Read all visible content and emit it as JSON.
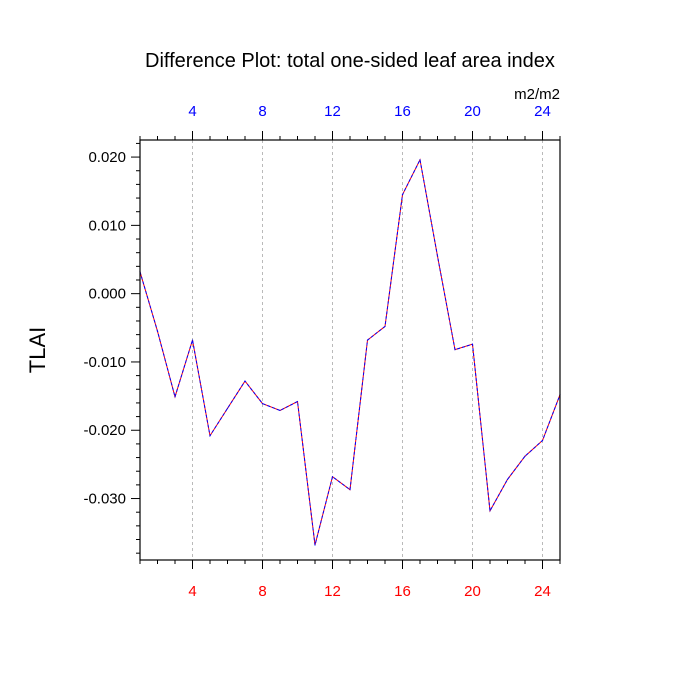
{
  "chart_data": {
    "type": "line",
    "title": "Difference Plot: total one-sided leaf area index",
    "ylabel": "TLAI",
    "units_label": "m2/m2",
    "xlabel": "",
    "xlim": [
      1,
      25
    ],
    "ylim": [
      -0.039,
      0.0225
    ],
    "x_ticks": [
      4,
      8,
      12,
      16,
      20,
      24
    ],
    "x_tick_labels": [
      "4",
      "8",
      "12",
      "16",
      "20",
      "24"
    ],
    "y_ticks": [
      0.02,
      0.01,
      0.0,
      -0.01,
      -0.02,
      -0.03
    ],
    "y_tick_labels": [
      "0.020",
      "0.010",
      "0.000",
      "-0.010",
      "-0.020",
      "-0.030"
    ],
    "grid": "vertical dashed at major x ticks",
    "colors": {
      "top_axis_labels": "#0000ff",
      "bottom_axis_labels": "#ff0000",
      "line_solid": "#ff0000",
      "line_dash": "#0000ff",
      "grid": "#aaaaaa"
    },
    "x": [
      1,
      2,
      3,
      4,
      5,
      6,
      7,
      8,
      9,
      10,
      11,
      12,
      13,
      14,
      15,
      16,
      17,
      18,
      19,
      20,
      21,
      22,
      23,
      24,
      25
    ],
    "values": [
      0.0032,
      -0.0055,
      -0.0151,
      -0.0068,
      -0.0208,
      -0.0168,
      -0.0128,
      -0.0161,
      -0.0171,
      -0.0158,
      -0.0368,
      -0.0268,
      -0.0287,
      -0.0068,
      -0.0048,
      0.0145,
      0.0196,
      0.0055,
      -0.0082,
      -0.0074,
      -0.0318,
      -0.0272,
      -0.0238,
      -0.0215,
      -0.0148
    ]
  }
}
